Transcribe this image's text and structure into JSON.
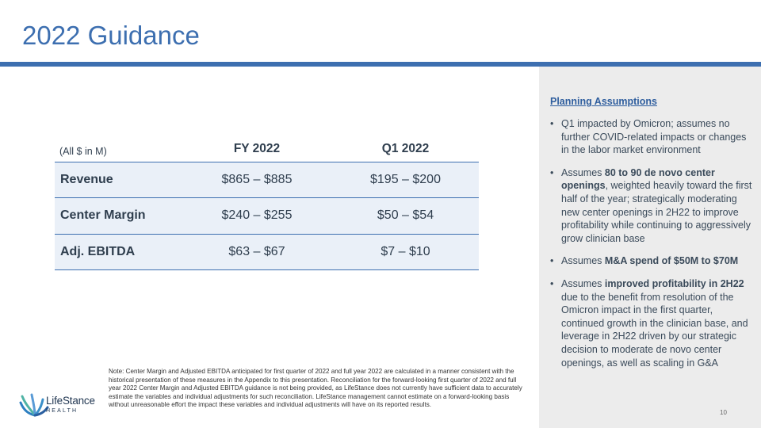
{
  "title": "2022 Guidance",
  "table": {
    "unit_label": "(All $ in M)",
    "columns": [
      "FY 2022",
      "Q1 2022"
    ],
    "rows": [
      {
        "metric": "Revenue",
        "fy2022": "$865 – $885",
        "q12022": "$195 – $200"
      },
      {
        "metric": "Center Margin",
        "fy2022": "$240 – $255",
        "q12022": "$50 – $54"
      },
      {
        "metric": "Adj. EBITDA",
        "fy2022": "$63 – $67",
        "q12022": "$7 – $10"
      }
    ]
  },
  "planning": {
    "heading": "Planning Assumptions",
    "bullets": [
      {
        "text": "Q1 impacted by Omicron; assumes no further COVID-related impacts or changes in the labor market environment"
      },
      {
        "pre": "Assumes ",
        "bold": "80 to 90 de novo center openings",
        "post": ", weighted heavily toward the first half of the year; strategically moderating new center openings in 2H22 to improve profitability while continuing to aggressively grow clinician base"
      },
      {
        "pre": "Assumes ",
        "bold": "M&A spend of $50M to $70M",
        "post": ""
      },
      {
        "pre": "Assumes ",
        "bold": "improved profitability in 2H22",
        "post": " due to the benefit from resolution of the Omicron impact in the first quarter, continued growth in the clinician base, and leverage in 2H22 driven by our strategic decision to moderate de novo center openings, as well as scaling in G&A"
      }
    ]
  },
  "note": "Note:  Center Margin and Adjusted EBITDA anticipated for first quarter of 2022 and full year 2022 are calculated in a manner consistent with the historical presentation of these measures in the Appendix to this presentation. Reconciliation for the forward-looking first quarter of 2022 and full year 2022 Center Margin and Adjusted EBITDA guidance is not being provided, as LifeStance does not currently have sufficient data to accurately estimate the variables and individual adjustments for such reconciliation. LifeStance management cannot estimate on a forward-looking basis without unreasonable effort the impact these variables and individual adjustments will have on its reported results.",
  "logo": {
    "name": "LifeStance",
    "sub": "HEALTH",
    "icon": "lifestance-leaf-icon"
  },
  "page_number": "10",
  "colors": {
    "accent": "#3d6fb0",
    "panel": "#ececec",
    "row_fill": "#eaf0f8"
  }
}
